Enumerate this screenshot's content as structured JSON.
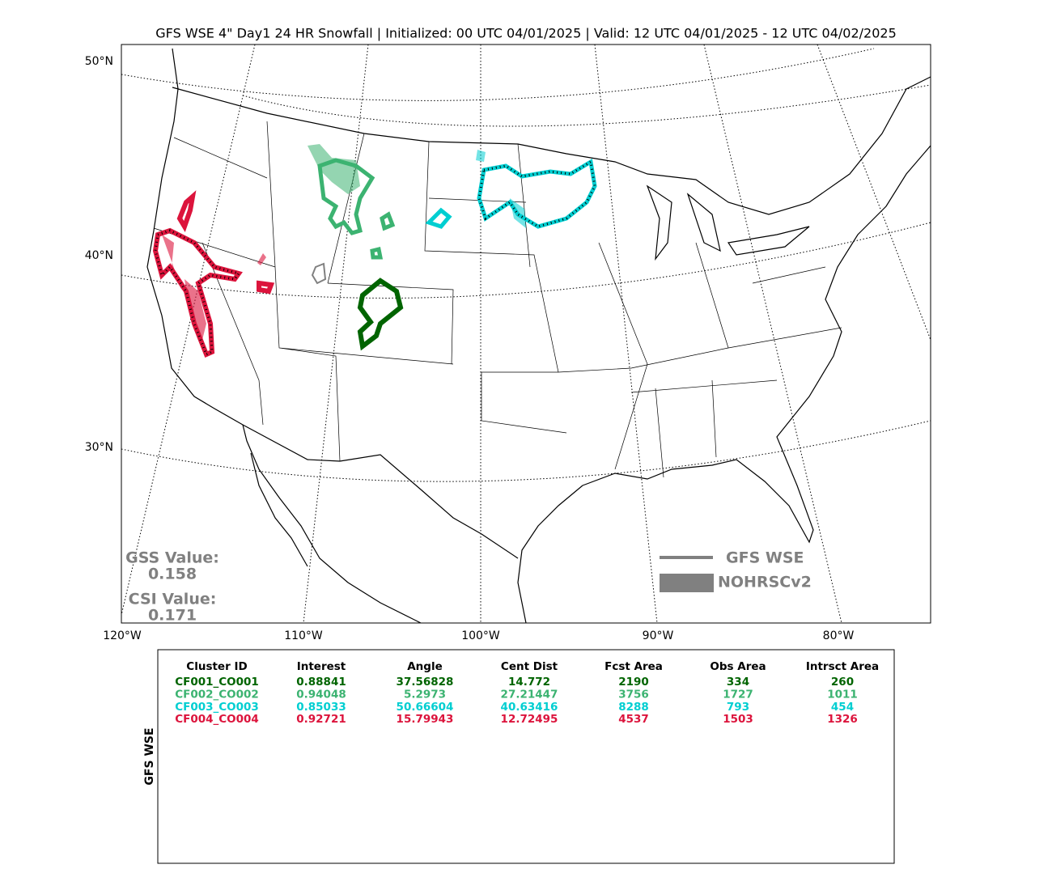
{
  "title": "GFS WSE 4\" Day1 24 HR Snowfall | Initialized: 00 UTC 04/01/2025 | Valid: 12 UTC 04/01/2025 - 12 UTC 04/02/2025",
  "map": {
    "lat_labels": [
      "50°N",
      "40°N",
      "30°N"
    ],
    "lon_labels": [
      "120°W",
      "110°W",
      "100°W",
      "90°W",
      "80°W"
    ]
  },
  "scores": [
    {
      "label": "GSS Value:",
      "value": "0.158"
    },
    {
      "label": "CSI Value:",
      "value": "0.171"
    }
  ],
  "legend": [
    "GFS WSE",
    "NOHRSCv2"
  ],
  "table": {
    "side_label": "GFS WSE",
    "header": [
      "Cluster ID",
      "Interest",
      "Angle",
      "Cent Dist",
      "Fcst Area",
      "Obs Area",
      "Intrsct Area"
    ],
    "rows": [
      [
        "CF001_CO001",
        "0.88841",
        "37.56828",
        "14.772",
        "2190",
        "334",
        "260"
      ],
      [
        "CF002_CO002",
        "0.94048",
        "5.2973",
        "27.21447",
        "3756",
        "1727",
        "1011"
      ],
      [
        "CF003_CO003",
        "0.85033",
        "50.66604",
        "40.63416",
        "8288",
        "793",
        "454"
      ],
      [
        "CF004_CO004",
        "0.92721",
        "15.79943",
        "12.72495",
        "4537",
        "1503",
        "1326"
      ]
    ],
    "row_colors": [
      "#006400",
      "#3cb371",
      "#00ced1",
      "#dc143c"
    ]
  }
}
